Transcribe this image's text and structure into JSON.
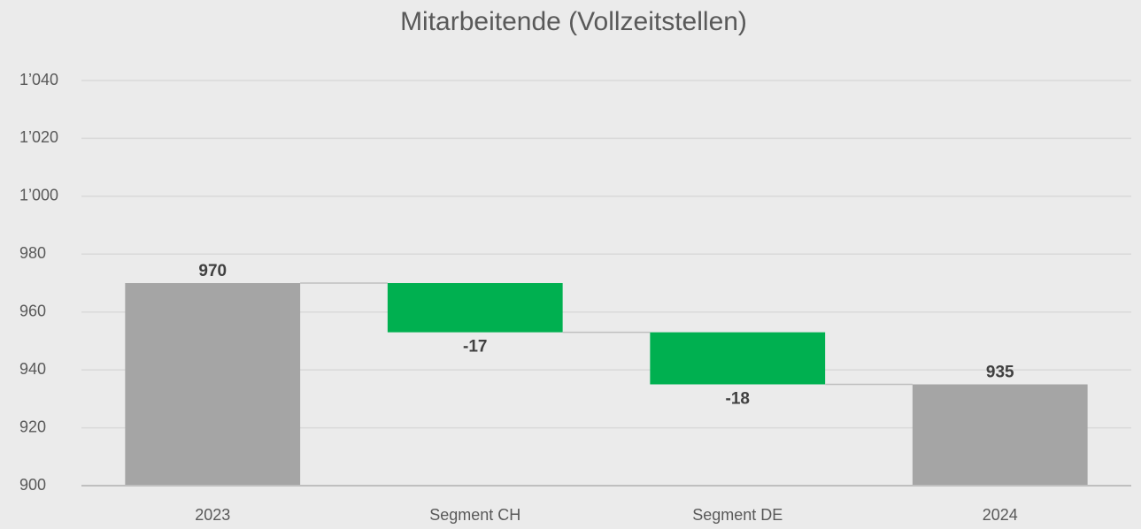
{
  "chart_data": {
    "type": "waterfall",
    "title": "Mitarbeitende (Vollzeitstellen)",
    "categories": [
      "2023",
      "Segment CH",
      "Segment DE",
      "2024"
    ],
    "values": [
      970,
      -17,
      -18,
      935
    ],
    "is_total": [
      true,
      false,
      false,
      true
    ],
    "colors": [
      "#a5a5a5",
      "#00b050",
      "#00b050",
      "#a5a5a5"
    ],
    "ylim": [
      900,
      1040
    ],
    "yticks": [
      900,
      920,
      940,
      960,
      980,
      {
        "value": 1000,
        "label": "1’000"
      },
      {
        "value": 1020,
        "label": "1’020"
      },
      {
        "value": 1040,
        "label": "1’040"
      }
    ],
    "grid": true
  }
}
